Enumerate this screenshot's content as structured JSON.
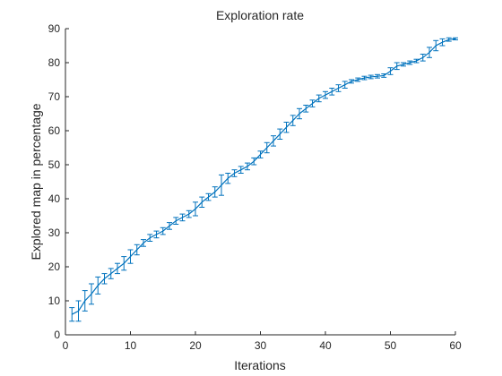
{
  "chart_data": {
    "type": "line",
    "title": "Exploration rate",
    "xlabel": "Iterations",
    "ylabel": "Explored map in percentage",
    "xlim": [
      0,
      60
    ],
    "ylim": [
      0,
      90
    ],
    "xticks": [
      0,
      10,
      20,
      30,
      40,
      50,
      60
    ],
    "yticks": [
      0,
      10,
      20,
      30,
      40,
      50,
      60,
      70,
      80,
      90
    ],
    "grid": false,
    "legend": "none",
    "line_color": "#0072BD",
    "axis_color": "#262626",
    "series": [
      {
        "x": [
          1,
          2,
          3,
          4,
          5,
          6,
          7,
          8,
          9,
          10,
          11,
          12,
          13,
          14,
          15,
          16,
          17,
          18,
          19,
          20,
          21,
          22,
          23,
          24,
          25,
          26,
          27,
          28,
          29,
          30,
          31,
          32,
          33,
          34,
          35,
          36,
          37,
          38,
          39,
          40,
          41,
          42,
          43,
          44,
          45,
          46,
          47,
          48,
          49,
          50,
          51,
          52,
          53,
          54,
          55,
          56,
          57,
          58,
          59,
          60
        ],
        "y": [
          6,
          7,
          10,
          12,
          14.5,
          16.5,
          18,
          19.5,
          21,
          23,
          25,
          27,
          28.5,
          29.5,
          30.5,
          32,
          33.5,
          34.5,
          35.5,
          37,
          39,
          40.5,
          42,
          44,
          46,
          47.5,
          48.5,
          49.5,
          51,
          53,
          55,
          57,
          59,
          61,
          63,
          65,
          66.5,
          68,
          69.5,
          70.5,
          71.5,
          72.5,
          73.5,
          74.5,
          75,
          75.5,
          75.8,
          76,
          76.2,
          77.5,
          79,
          79.5,
          80,
          80.5,
          81.5,
          83,
          85,
          86,
          86.8,
          87
        ],
        "err": [
          2,
          3,
          3,
          3,
          2.5,
          1.5,
          1.5,
          1.5,
          2,
          2,
          1.5,
          1,
          1,
          1,
          1,
          1,
          1,
          1,
          1,
          2,
          1.5,
          1,
          1.5,
          3,
          1.5,
          1,
          1,
          1,
          1,
          1,
          1.5,
          1.5,
          1.5,
          1.5,
          1.5,
          1.5,
          1,
          1,
          1,
          1,
          1,
          1,
          1,
          0.5,
          0.5,
          0.5,
          0.5,
          0.5,
          0.5,
          1,
          1,
          0.5,
          0.5,
          0.5,
          1,
          1.5,
          1.5,
          1,
          0.5,
          0.3
        ]
      }
    ]
  }
}
